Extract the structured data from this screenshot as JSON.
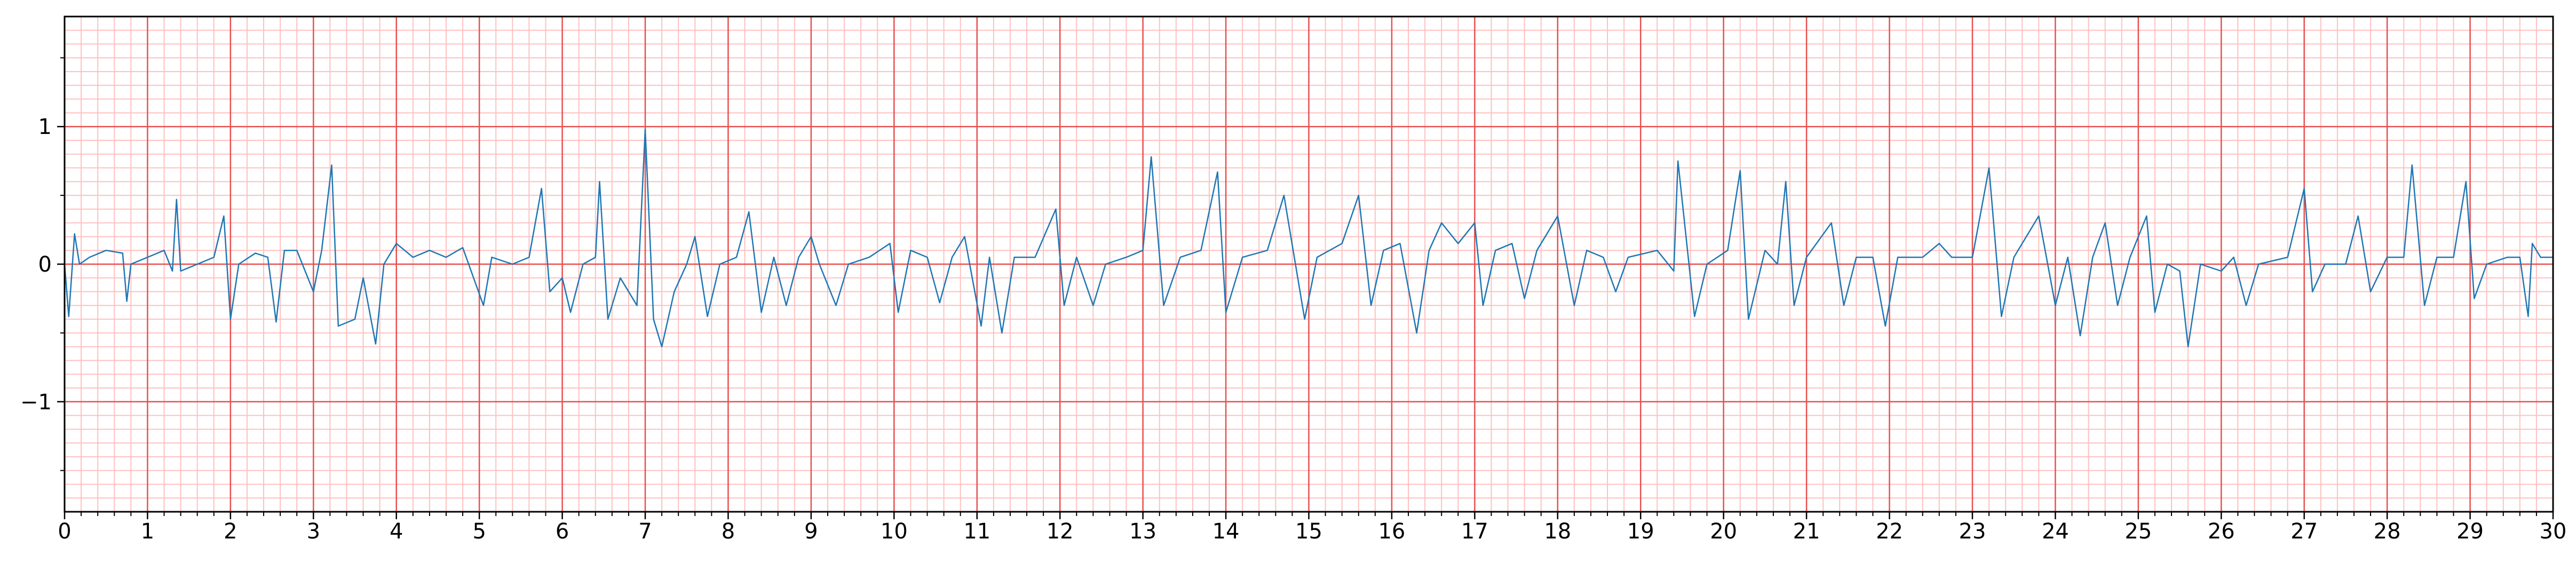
{
  "chart_data": {
    "type": "line",
    "x": [
      0,
      0.05,
      0.12,
      0.18,
      0.3,
      0.5,
      0.7,
      0.75,
      0.8,
      1.0,
      1.2,
      1.3,
      1.35,
      1.4,
      1.6,
      1.8,
      1.92,
      2.0,
      2.1,
      2.3,
      2.45,
      2.55,
      2.65,
      2.8,
      3.0,
      3.1,
      3.22,
      3.3,
      3.5,
      3.6,
      3.75,
      3.85,
      4.0,
      4.2,
      4.4,
      4.6,
      4.8,
      5.05,
      5.15,
      5.4,
      5.6,
      5.75,
      5.85,
      6.0,
      6.1,
      6.25,
      6.4,
      6.45,
      6.55,
      6.7,
      6.9,
      7.0,
      7.1,
      7.2,
      7.35,
      7.5,
      7.6,
      7.75,
      7.9,
      8.1,
      8.25,
      8.4,
      8.55,
      8.7,
      8.85,
      9.0,
      9.1,
      9.3,
      9.45,
      9.7,
      9.95,
      10.05,
      10.2,
      10.4,
      10.55,
      10.7,
      10.85,
      11.05,
      11.15,
      11.3,
      11.45,
      11.7,
      11.95,
      12.05,
      12.2,
      12.4,
      12.55,
      12.8,
      13.0,
      13.1,
      13.25,
      13.45,
      13.7,
      13.9,
      14.0,
      14.2,
      14.5,
      14.7,
      14.95,
      15.1,
      15.4,
      15.6,
      15.75,
      15.9,
      16.1,
      16.3,
      16.45,
      16.6,
      16.8,
      17.0,
      17.1,
      17.25,
      17.45,
      17.6,
      17.75,
      18.0,
      18.2,
      18.35,
      18.55,
      18.7,
      18.85,
      19.2,
      19.4,
      19.45,
      19.65,
      19.8,
      20.05,
      20.2,
      20.3,
      20.5,
      20.65,
      20.75,
      20.85,
      21.0,
      21.3,
      21.45,
      21.6,
      21.8,
      21.95,
      22.1,
      22.4,
      22.6,
      22.75,
      23.0,
      23.2,
      23.35,
      23.5,
      23.8,
      24.0,
      24.15,
      24.3,
      24.45,
      24.6,
      24.75,
      24.9,
      25.1,
      25.2,
      25.35,
      25.5,
      25.6,
      25.75,
      26.0,
      26.15,
      26.3,
      26.45,
      26.8,
      27.0,
      27.1,
      27.25,
      27.5,
      27.65,
      27.8,
      28.0,
      28.2,
      28.3,
      28.45,
      28.6,
      28.8,
      28.95,
      29.05,
      29.2,
      29.45,
      29.6,
      29.7,
      29.75,
      29.85,
      30
    ],
    "values": [
      0,
      -0.38,
      0.22,
      0,
      0.05,
      0.1,
      0.08,
      -0.27,
      0,
      0.05,
      0.1,
      -0.05,
      0.47,
      -0.05,
      0,
      0.05,
      0.35,
      -0.4,
      0,
      0.08,
      0.05,
      -0.42,
      0.1,
      0.1,
      -0.2,
      0.1,
      0.72,
      -0.45,
      -0.4,
      -0.1,
      -0.58,
      0,
      0.15,
      0.05,
      0.1,
      0.05,
      0.12,
      -0.3,
      0.05,
      0,
      0.05,
      0.55,
      -0.2,
      -0.1,
      -0.35,
      0,
      0.05,
      0.6,
      -0.4,
      -0.1,
      -0.3,
      0.98,
      -0.4,
      -0.6,
      -0.2,
      0,
      0.2,
      -0.38,
      0,
      0.05,
      0.38,
      -0.35,
      0.05,
      -0.3,
      0.05,
      0.2,
      0,
      -0.3,
      0,
      0.05,
      0.15,
      -0.35,
      0.1,
      0.05,
      -0.28,
      0.05,
      0.2,
      -0.45,
      0.05,
      -0.5,
      0.05,
      0.05,
      0.4,
      -0.3,
      0.05,
      -0.3,
      0,
      0.05,
      0.1,
      0.78,
      -0.3,
      0.05,
      0.1,
      0.67,
      -0.35,
      0.05,
      0.1,
      0.5,
      -0.4,
      0.05,
      0.15,
      0.5,
      -0.3,
      0.1,
      0.15,
      -0.5,
      0.1,
      0.3,
      0.15,
      0.3,
      -0.3,
      0.1,
      0.15,
      -0.25,
      0.1,
      0.35,
      -0.3,
      0.1,
      0.05,
      -0.2,
      0.05,
      0.1,
      -0.05,
      0.75,
      -0.38,
      0,
      0.1,
      0.68,
      -0.4,
      0.1,
      0,
      0.6,
      -0.3,
      0.05,
      0.3,
      -0.3,
      0.05,
      0.05,
      -0.45,
      0.05,
      0.05,
      0.15,
      0.05,
      0.05,
      0.7,
      -0.38,
      0.05,
      0.35,
      -0.3,
      0.05,
      -0.52,
      0.05,
      0.3,
      -0.3,
      0.05,
      0.35,
      -0.35,
      0,
      -0.05,
      -0.6,
      0,
      -0.05,
      0.05,
      -0.3,
      0,
      0.05,
      0.55,
      -0.2,
      0,
      0,
      0.35,
      -0.2,
      0.05,
      0.05,
      0.72,
      -0.3,
      0.05,
      0.05,
      0.6,
      -0.25,
      0,
      0.05,
      0.05,
      -0.38,
      0.15,
      0.05,
      0.05
    ],
    "color": "#1f77b4",
    "xlim": [
      0,
      30
    ],
    "xticks": [
      0,
      1,
      2,
      3,
      4,
      5,
      6,
      7,
      8,
      9,
      10,
      11,
      12,
      13,
      14,
      15,
      16,
      17,
      18,
      19,
      20,
      21,
      22,
      23,
      24,
      25,
      26,
      27,
      28,
      29,
      30
    ],
    "ylim": [
      -1.8,
      1.8
    ],
    "yticks": [
      {
        "value": -1,
        "label": "−1"
      },
      0,
      1
    ],
    "grid": true,
    "minor_grid": {
      "x": 0.2,
      "y": 0.1
    }
  }
}
